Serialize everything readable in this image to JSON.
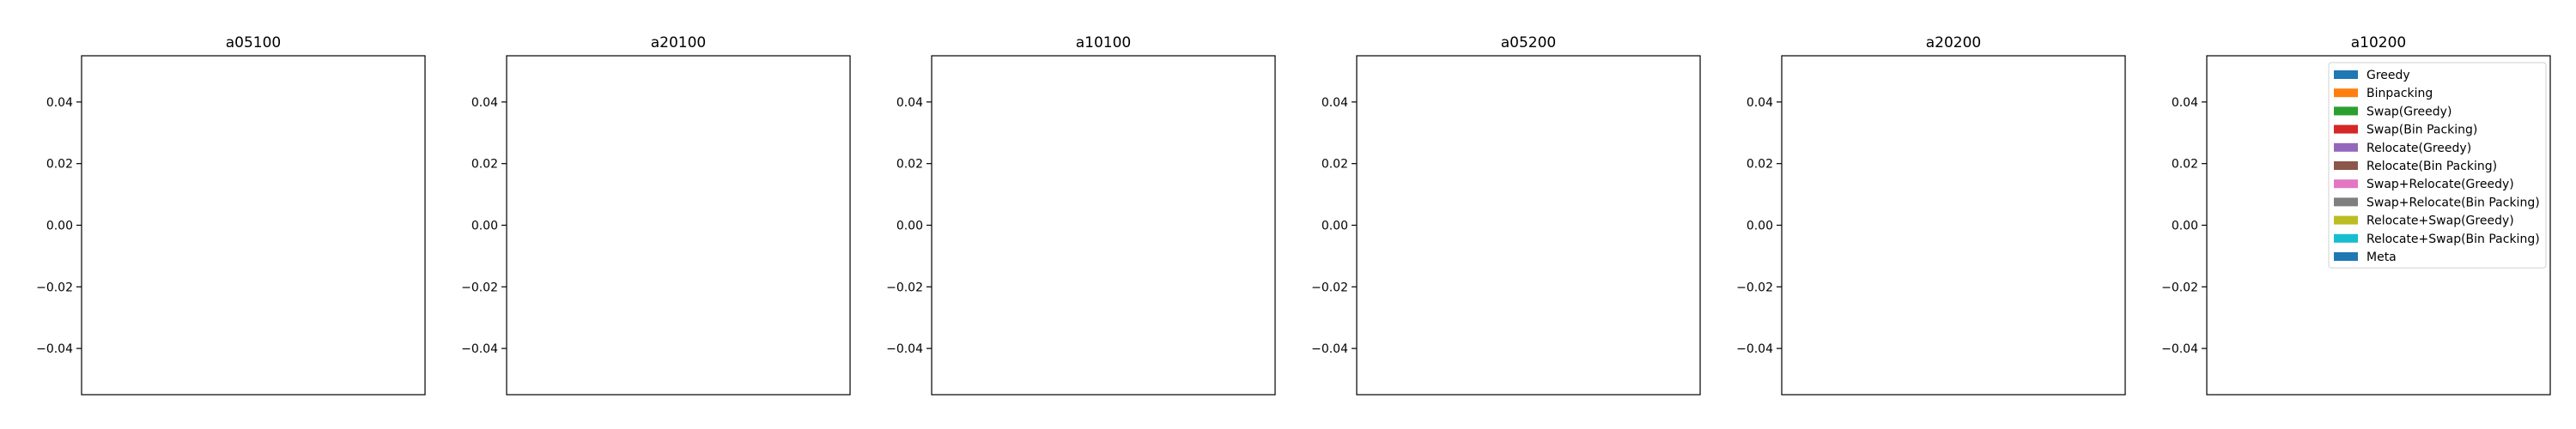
{
  "chart_data": {
    "type": "bar",
    "titles": [
      "a05100",
      "a20100",
      "a10100",
      "a05200",
      "a20200",
      "a10200"
    ],
    "y_ticks": [
      {
        "value": 0.04,
        "label": "0.04"
      },
      {
        "value": 0.02,
        "label": "0.02"
      },
      {
        "value": 0.0,
        "label": "0.00"
      },
      {
        "value": -0.02,
        "label": "−0.02"
      },
      {
        "value": -0.04,
        "label": "−0.04"
      }
    ],
    "ylim": [
      -0.055,
      0.055
    ],
    "grid": false,
    "legend_placement": "upper-right (last panel)",
    "series": [
      {
        "name": "Greedy",
        "color": "#1f77b4",
        "values": []
      },
      {
        "name": "Binpacking",
        "color": "#ff7f0e",
        "values": []
      },
      {
        "name": "Swap(Greedy)",
        "color": "#2ca02c",
        "values": []
      },
      {
        "name": "Swap(Bin Packing)",
        "color": "#d62728",
        "values": []
      },
      {
        "name": "Relocate(Greedy)",
        "color": "#9467bd",
        "values": []
      },
      {
        "name": "Relocate(Bin Packing)",
        "color": "#8c564b",
        "values": []
      },
      {
        "name": "Swap+Relocate(Greedy)",
        "color": "#e377c2",
        "values": []
      },
      {
        "name": "Swap+Relocate(Bin Packing)",
        "color": "#7f7f7f",
        "values": []
      },
      {
        "name": "Relocate+Swap(Greedy)",
        "color": "#bcbd22",
        "values": []
      },
      {
        "name": "Relocate+Swap(Bin Packing)",
        "color": "#17becf",
        "values": []
      },
      {
        "name": "Meta",
        "color": "#1f77b4",
        "values": []
      }
    ]
  }
}
